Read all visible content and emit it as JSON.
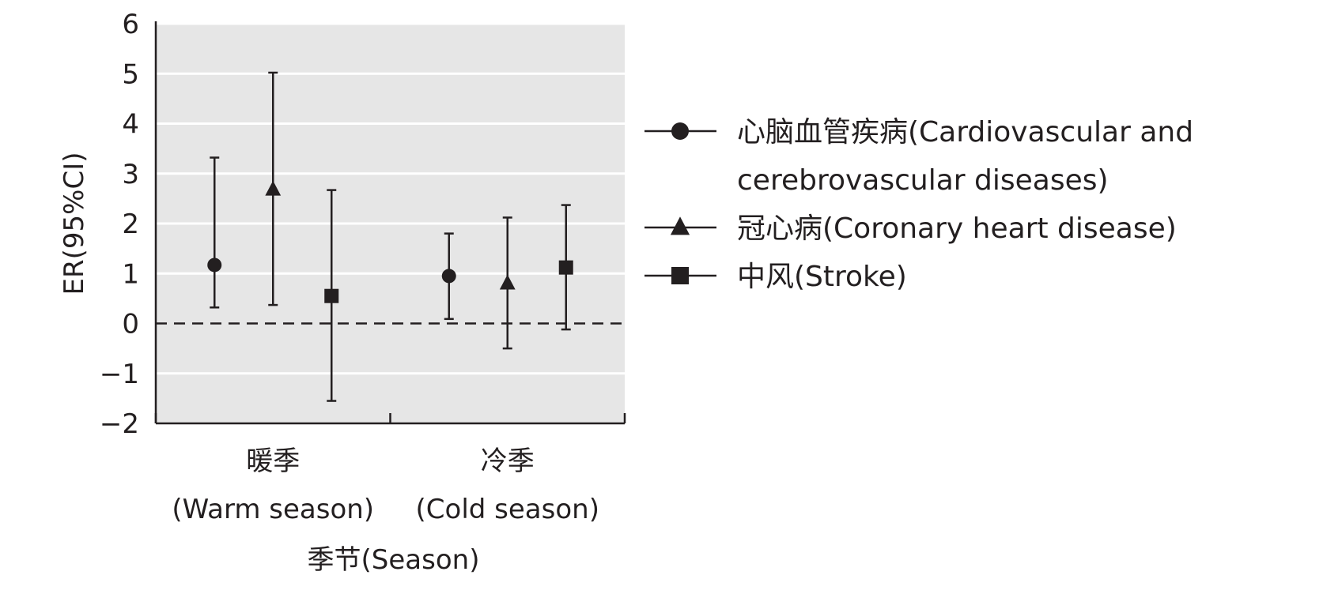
{
  "chart_data": {
    "type": "scatter",
    "subtype": "point-estimates-with-95ci-error-bars",
    "title": "",
    "xlabel": "季节(Season)",
    "ylabel": "ER(95%CI)",
    "ylim": [
      -2,
      6
    ],
    "yticks": [
      -2,
      -1,
      0,
      1,
      2,
      3,
      4,
      5,
      6
    ],
    "ytick_labels": [
      "−2",
      "−1",
      "0",
      "1",
      "2",
      "3",
      "4",
      "5",
      "6"
    ],
    "categories": [
      {
        "label_cn": "暖季",
        "label_en": "(Warm season)"
      },
      {
        "label_cn": "冷季",
        "label_en": "(Cold season)"
      }
    ],
    "reference_line": {
      "y": 0,
      "style": "dashed"
    },
    "grid": true,
    "background_color": "#e6e6e6",
    "legend_position": "right",
    "series": [
      {
        "name": "心脑血管疾病(Cardiovascular and cerebrovascular diseases)",
        "legend_lines": [
          "心脑血管疾病(Cardiovascular and",
          "cerebrovascular diseases)"
        ],
        "marker": "circle",
        "values": [
          1.17,
          0.95
        ],
        "lower": [
          0.32,
          0.09
        ],
        "upper": [
          3.32,
          1.8
        ]
      },
      {
        "name": "冠心病(Coronary heart disease)",
        "legend_lines": [
          "冠心病(Coronary heart disease)"
        ],
        "marker": "triangle",
        "values": [
          2.68,
          0.8
        ],
        "lower": [
          0.37,
          -0.5
        ],
        "upper": [
          5.02,
          2.12
        ]
      },
      {
        "name": "中风(Stroke)",
        "legend_lines": [
          "中风(Stroke)"
        ],
        "marker": "square",
        "values": [
          0.55,
          1.12
        ],
        "lower": [
          -1.55,
          -0.12
        ],
        "upper": [
          2.67,
          2.37
        ]
      }
    ],
    "colors": {
      "marker": "#231f20",
      "axis": "#231f20",
      "grid": "#ffffff",
      "plot_bg": "#e6e6e6"
    }
  }
}
